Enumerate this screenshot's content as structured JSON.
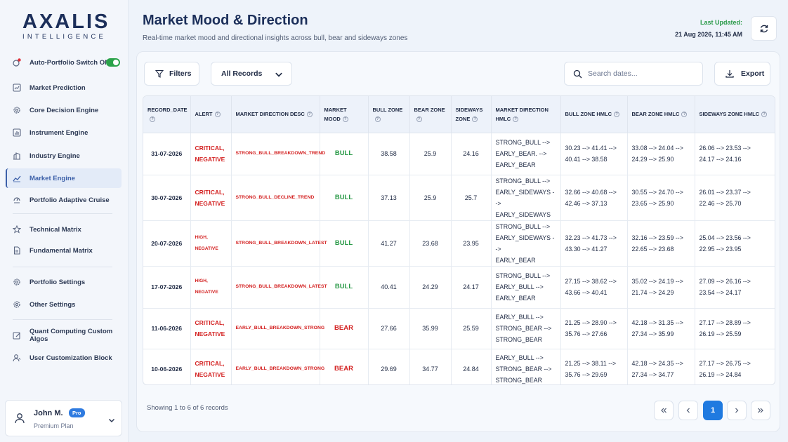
{
  "brand": {
    "name": "AXALIS",
    "tagline": "INTELLIGENCE"
  },
  "sidebar": {
    "toggle_item": {
      "label": "Auto-Portfolio Switch ON",
      "state": "on"
    },
    "items": [
      {
        "label": "Market Prediction",
        "icon": "chart-icon"
      },
      {
        "label": "Core Decision Engine",
        "icon": "gear-icon"
      },
      {
        "label": "Instrument Engine",
        "icon": "bar-chart-icon"
      },
      {
        "label": "Industry Engine",
        "icon": "building-icon"
      },
      {
        "label": "Market Engine",
        "icon": "trend-icon",
        "active": true
      },
      {
        "label": "Portfolio Adaptive Cruise",
        "icon": "cruise-icon"
      },
      {
        "label": "Technical Matrix",
        "icon": "star-icon"
      },
      {
        "label": "Fundamental Matrix",
        "icon": "document-icon"
      },
      {
        "label": "Portfolio Settings",
        "icon": "gear-icon"
      },
      {
        "label": "Other Settings",
        "icon": "gear-icon"
      },
      {
        "label": "Quant Computing Custom Algos",
        "icon": "edit-icon"
      },
      {
        "label": "User Customization Block",
        "icon": "users-icon"
      }
    ],
    "user": {
      "name": "John M.",
      "badge": "Pro",
      "plan": "Premium Plan"
    }
  },
  "header": {
    "title": "Market Mood & Direction",
    "subtitle": "Real-time market mood and directional insights across bull, bear and sideways zones",
    "updated_label": "Last Updated:",
    "updated_value": "21 Aug 2026, 11:45 AM"
  },
  "toolbar": {
    "filters_label": "Filters",
    "records_select": "All Records",
    "search_placeholder": "Search dates...",
    "export_label": "Export"
  },
  "table": {
    "columns": [
      "RECORD_DATE",
      "ALERT",
      "MARKET DIRECTION DESC",
      "MARKET MOOD",
      "BULL ZONE",
      "BEAR ZONE",
      "SIDEWAYS ZONE",
      "MARKET DIRECTION HMLC",
      "BULL ZONE HMLC",
      "BEAR ZONE HMLC",
      "SIDEWAYS ZONE HMLC"
    ],
    "rows": [
      {
        "date": "31-07-2026",
        "alert": "CRITICAL, NEGATIVE",
        "desc": "STRONG_BULL_BREAKDOWN_TREND",
        "mood": "BULL",
        "bull": "38.58",
        "bear": "25.9",
        "sideways": "24.16",
        "dir_hmlc": [
          "STRONG_BULL -->",
          "EARLY_BEAR. -->",
          "EARLY_BEAR"
        ],
        "bull_hmlc": [
          "30.23 --> 41.41 -->",
          "40.41 --> 38.58"
        ],
        "bear_hmlc": [
          "33.08 --> 24.04 -->",
          "24.29 --> 25.90"
        ],
        "side_hmlc": [
          "26.06 --> 23.53 -->",
          "24.17 --> 24.16"
        ]
      },
      {
        "date": "30-07-2026",
        "alert": "CRITICAL, NEGATIVE",
        "desc": "STRONG_BULL_DECLINE_TREND",
        "mood": "BULL",
        "bull": "37.13",
        "bear": "25.9",
        "sideways": "25.7",
        "dir_hmlc": [
          "STRONG_BULL -->",
          "EARLY_SIDEWAYS -->",
          "EARLY_SIDEWAYS"
        ],
        "bull_hmlc": [
          "32.66 --> 40.68 -->",
          "42.46 --> 37.13"
        ],
        "bear_hmlc": [
          "30.55 --> 24.70 -->",
          "23.65 --> 25.90"
        ],
        "side_hmlc": [
          "26.01 --> 23.37 -->",
          "22.46 --> 25.70"
        ]
      },
      {
        "date": "20-07-2026",
        "alert": "HIGH, NEGATIVE",
        "desc": "STRONG_BULL_BREAKDOWN_LATEST",
        "mood": "BULL",
        "bull": "41.27",
        "bear": "23.68",
        "sideways": "23.95",
        "dir_hmlc": [
          "STRONG_BULL -->",
          "EARLY_SIDEWAYS -->",
          "EARLY_BEAR"
        ],
        "bull_hmlc": [
          "32.23 --> 41.73 -->",
          "43.30 --> 41.27"
        ],
        "bear_hmlc": [
          "32.16 --> 23.59 -->",
          "22.65 --> 23.68"
        ],
        "side_hmlc": [
          "25.04 --> 23.56 -->",
          "22.95 --> 23.95"
        ]
      },
      {
        "date": "17-07-2026",
        "alert": "HIGH, NEGATIVE",
        "desc": "STRONG_BULL_BREAKDOWN_LATEST",
        "mood": "BULL",
        "bull": "40.41",
        "bear": "24.29",
        "sideways": "24.17",
        "dir_hmlc": [
          "STRONG_BULL -->",
          "EARLY_BULL -->",
          "EARLY_BEAR"
        ],
        "bull_hmlc": [
          "27.15 --> 38.62 -->",
          "43.66 --> 40.41"
        ],
        "bear_hmlc": [
          "35.02 --> 24.19 -->",
          "21.74 --> 24.29"
        ],
        "side_hmlc": [
          "27.09 --> 26.16 -->",
          "23.54 --> 24.17"
        ]
      },
      {
        "date": "11-06-2026",
        "alert": "CRITICAL, NEGATIVE",
        "desc": "EARLY_BULL_BREAKDOWN_STRONG",
        "mood": "BEAR",
        "bull": "27.66",
        "bear": "35.99",
        "sideways": "25.59",
        "dir_hmlc": [
          "EARLY_BULL -->",
          "STRONG_BEAR -->",
          "STRONG_BEAR"
        ],
        "bull_hmlc": [
          "21.25 --> 28.90 -->",
          "35.76 --> 27.66"
        ],
        "bear_hmlc": [
          "42.18 --> 31.35 -->",
          "27.34 --> 35.99"
        ],
        "side_hmlc": [
          "27.17 --> 28.89 -->",
          "26.19 --> 25.59"
        ]
      },
      {
        "date": "10-06-2026",
        "alert": "CRITICAL, NEGATIVE",
        "desc": "EARLY_BULL_BREAKDOWN_STRONG",
        "mood": "BEAR",
        "bull": "29.69",
        "bear": "34.77",
        "sideways": "24.84",
        "dir_hmlc": [
          "EARLY_BULL -->",
          "STRONG_BEAR -->",
          "STRONG_BEAR"
        ],
        "bull_hmlc": [
          "21.25 --> 38.11 -->",
          "35.76 --> 29.69"
        ],
        "bear_hmlc": [
          "42.18 --> 24.35 -->",
          "27.34 --> 34.77"
        ],
        "side_hmlc": [
          "27.17 --> 26.75 -->",
          "26.19 --> 24.84"
        ]
      }
    ]
  },
  "footer": {
    "showing": "Showing 1 to 6 of 6 records",
    "current_page": "1"
  },
  "colors": {
    "accent": "#1f7ae0",
    "bull": "#2a9a48",
    "bear": "#d31f1f",
    "navy": "#1c2f5a"
  }
}
